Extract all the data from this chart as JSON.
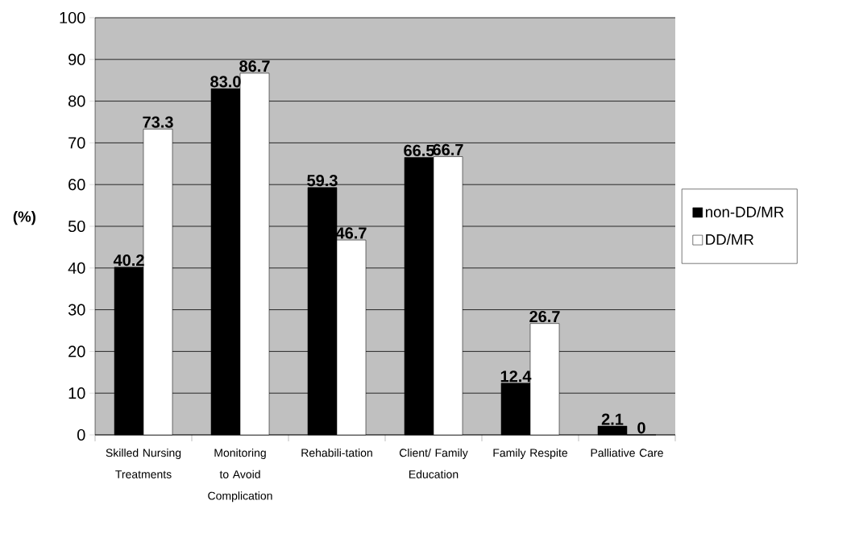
{
  "chart_data": {
    "type": "bar",
    "ylabel": "(%)",
    "categories": [
      "Skilled Nursing Treatments",
      "Monitoring to Avoid Complication",
      "Rehabili-tation",
      "Client/ Family Education",
      "Family Respite",
      "Palliative Care"
    ],
    "series": [
      {
        "name": "non-DD/MR",
        "color": "#000000",
        "values": [
          40.2,
          83.0,
          59.3,
          66.5,
          12.4,
          2.1
        ],
        "value_labels": [
          "40.2",
          "83.0",
          "59.3",
          "66.5",
          "12.4",
          "2.1"
        ]
      },
      {
        "name": "DD/MR",
        "color": "#ffffff",
        "values": [
          73.3,
          86.7,
          46.7,
          66.7,
          26.7,
          0
        ],
        "value_labels": [
          "73.3",
          "86.7",
          "46.7",
          "66.7",
          "26.7",
          "0"
        ]
      }
    ],
    "ylim": [
      0,
      100
    ],
    "yticks": [
      0,
      10,
      20,
      30,
      40,
      50,
      60,
      70,
      80,
      90,
      100
    ],
    "grid": "y",
    "legend": "right"
  }
}
